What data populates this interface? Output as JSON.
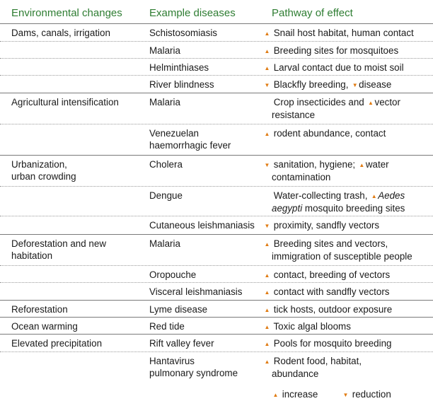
{
  "headers": {
    "env": "Environmental changes",
    "disease": "Example diseases",
    "pathway": "Pathway of effect"
  },
  "rows": [
    {
      "env": "Dams, canals, irrigation",
      "disease": "Schistosomiasis",
      "arrow": "up",
      "pathway": "Snail host habitat, human contact"
    },
    {
      "env": "",
      "disease": "Malaria",
      "arrow": "up",
      "pathway": "Breeding sites for mosquitoes"
    },
    {
      "env": "",
      "disease": "Helminthiases",
      "arrow": "up",
      "pathway": "Larval contact due to moist soil"
    },
    {
      "env": "",
      "disease": "River blindness",
      "arrow": "down",
      "pathway": "Blackfly breeding,",
      "arrow2": "down",
      "pathway2": "disease"
    },
    {
      "env": "Agricultural intensification",
      "disease": "Malaria",
      "arrow": "",
      "pathway": "Crop insecticides and",
      "arrow2": "up",
      "pathway2": "vector",
      "pathway3": "resistance"
    },
    {
      "env": "",
      "disease": "Venezuelan",
      "disease2": "haemorrhagic fever",
      "arrow": "up",
      "pathway": "rodent abundance, contact"
    },
    {
      "env": "Urbanization,",
      "env2": "urban crowding",
      "disease": "Cholera",
      "arrow": "down",
      "pathway": "sanitation, hygiene;",
      "arrow2": "up",
      "pathway2": "water",
      "pathway3": "contamination"
    },
    {
      "env": "",
      "disease": "Dengue",
      "arrow": "",
      "pathway": "Water-collecting trash,",
      "arrow2": "up",
      "pathway2": "Aedes",
      "pathway3_it": "aegypti",
      "pathway3": "mosquito breeding sites"
    },
    {
      "env": "",
      "disease": "Cutaneous leishmaniasis",
      "arrow": "down",
      "pathway": "proximity, sandfly vectors"
    },
    {
      "env": "Deforestation and new",
      "env2": "habitation",
      "disease": "Malaria",
      "arrow": "up",
      "pathway": "Breeding sites and vectors,",
      "pathway3": "immigration of susceptible people"
    },
    {
      "env": "",
      "disease": "Oropouche",
      "arrow": "up",
      "pathway": "contact, breeding of vectors"
    },
    {
      "env": "",
      "disease": "Visceral leishmaniasis",
      "arrow": "up",
      "pathway": "contact with sandfly vectors"
    },
    {
      "env": "Reforestation",
      "disease": "Lyme disease",
      "arrow": "up",
      "pathway": "tick hosts, outdoor exposure"
    },
    {
      "env": "Ocean warming",
      "disease": "Red tide",
      "arrow": "up",
      "pathway": "Toxic algal blooms"
    },
    {
      "env": "Elevated precipitation",
      "disease": "Rift valley fever",
      "arrow": "up",
      "pathway": "Pools for mosquito breeding"
    },
    {
      "env": "",
      "disease": "Hantavirus",
      "disease2": "pulmonary syndrome",
      "arrow": "up",
      "pathway": "Rodent food, habitat,",
      "pathway3": "abundance"
    }
  ],
  "legend": {
    "increase_label": "increase",
    "reduction_label": "reduction"
  },
  "colors": {
    "header_text": "#2e7d32",
    "arrow": "#e07b12",
    "rule": "#7a7a7a"
  }
}
